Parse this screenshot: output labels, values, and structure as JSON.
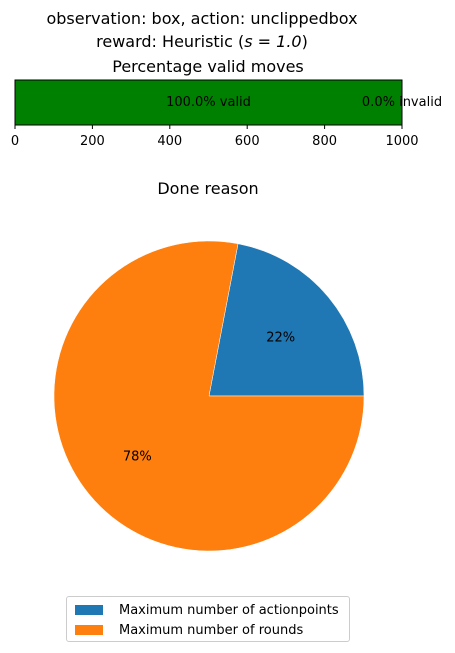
{
  "figure": {
    "title_line1": "observation: box, action: unclippedbox",
    "title_line2": "reward: Heuristic (",
    "title_line2_math": "s = 1.0",
    "title_line2_end": ")"
  },
  "chart_data": [
    {
      "type": "bar",
      "orientation": "horizontal-stacked",
      "title": "Percentage valid moves",
      "xlim": [
        0,
        1000
      ],
      "xticks": [
        0,
        200,
        400,
        600,
        800,
        1000
      ],
      "series": [
        {
          "name": "valid",
          "value": 1000,
          "label": "100.0% valid",
          "color": "#008000"
        },
        {
          "name": "invalid",
          "value": 0,
          "label": "0.0% invalid",
          "color": "#ff0000"
        }
      ]
    },
    {
      "type": "pie",
      "title": "Done reason",
      "slices": [
        {
          "name": "Maximum number of actionpoints",
          "value": 22,
          "label": "22%",
          "color": "#1f77b4"
        },
        {
          "name": "Maximum number of rounds",
          "value": 78,
          "label": "78%",
          "color": "#ff7f0e"
        }
      ],
      "legend_position": "bottom"
    }
  ]
}
